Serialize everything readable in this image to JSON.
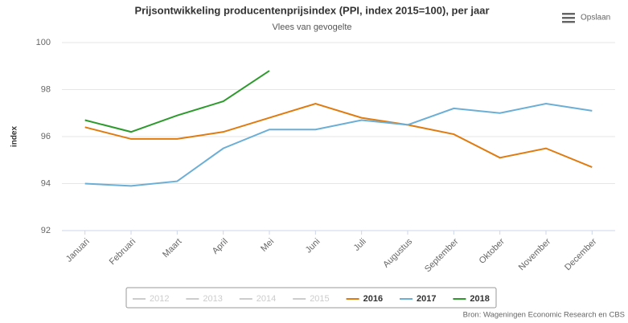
{
  "chart_data": {
    "type": "line",
    "title": "Prijsontwikkeling producentenprijsindex (PPI, index 2015=100), per jaar",
    "subtitle": "Vlees van gevogelte",
    "y_label": "index",
    "source": "Bron: Wageningen Economic Research en CBS",
    "menu_label": "Opslaan",
    "categories": [
      "Januari",
      "Februari",
      "Maart",
      "April",
      "Mei",
      "Juni",
      "Juli",
      "Augustus",
      "September",
      "Oktober",
      "November",
      "December"
    ],
    "series": [
      {
        "name": "2012",
        "color": "#cccccc",
        "visible": false,
        "values": [
          null,
          null,
          null,
          null,
          null,
          null,
          null,
          null,
          null,
          null,
          null,
          null
        ]
      },
      {
        "name": "2013",
        "color": "#cccccc",
        "visible": false,
        "values": [
          null,
          null,
          null,
          null,
          null,
          null,
          null,
          null,
          null,
          null,
          null,
          null
        ]
      },
      {
        "name": "2014",
        "color": "#cccccc",
        "visible": false,
        "values": [
          null,
          null,
          null,
          null,
          null,
          null,
          null,
          null,
          null,
          null,
          null,
          null
        ]
      },
      {
        "name": "2015",
        "color": "#cccccc",
        "visible": false,
        "values": [
          null,
          null,
          null,
          null,
          null,
          null,
          null,
          null,
          null,
          null,
          null,
          null
        ]
      },
      {
        "name": "2016",
        "color": "#e07b10",
        "visible": true,
        "values": [
          96.4,
          95.9,
          95.9,
          96.2,
          96.8,
          97.4,
          96.8,
          96.5,
          96.1,
          95.1,
          95.5,
          94.7
        ]
      },
      {
        "name": "2017",
        "color": "#6baed6",
        "visible": true,
        "values": [
          94.0,
          93.9,
          94.1,
          95.5,
          96.3,
          96.3,
          96.7,
          96.5,
          97.2,
          97.0,
          97.4,
          97.1
        ]
      },
      {
        "name": "2018",
        "color": "#2e9a2e",
        "visible": true,
        "values": [
          96.7,
          96.2,
          96.9,
          97.5,
          98.8,
          null,
          null,
          null,
          null,
          null,
          null,
          null
        ]
      }
    ],
    "ylim": [
      92,
      100
    ],
    "yticks": [
      92,
      94,
      96,
      98,
      100
    ],
    "grid": true
  }
}
